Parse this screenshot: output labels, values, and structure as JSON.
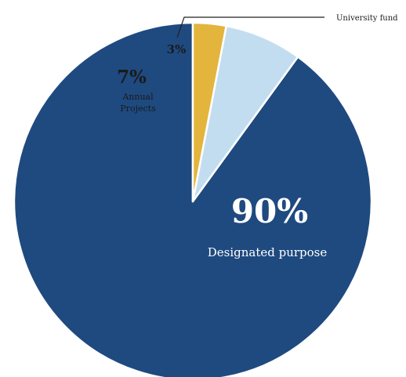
{
  "chart_data": {
    "type": "pie",
    "title": "",
    "slices": [
      {
        "label": "Designated purpose",
        "percent_label": "90%",
        "value": 90,
        "color": "#1f4a80"
      },
      {
        "label": "Annual Projects",
        "label_lines": [
          "Annual",
          "Projects"
        ],
        "percent_label": "7%",
        "value": 7,
        "color": "#c3ddf0"
      },
      {
        "label": "University fund",
        "percent_label": "3%",
        "value": 3,
        "color": "#e3b53d"
      }
    ],
    "start_direction": "top",
    "direction": "counterclockwise",
    "slice_border_color": "#ffffff"
  }
}
